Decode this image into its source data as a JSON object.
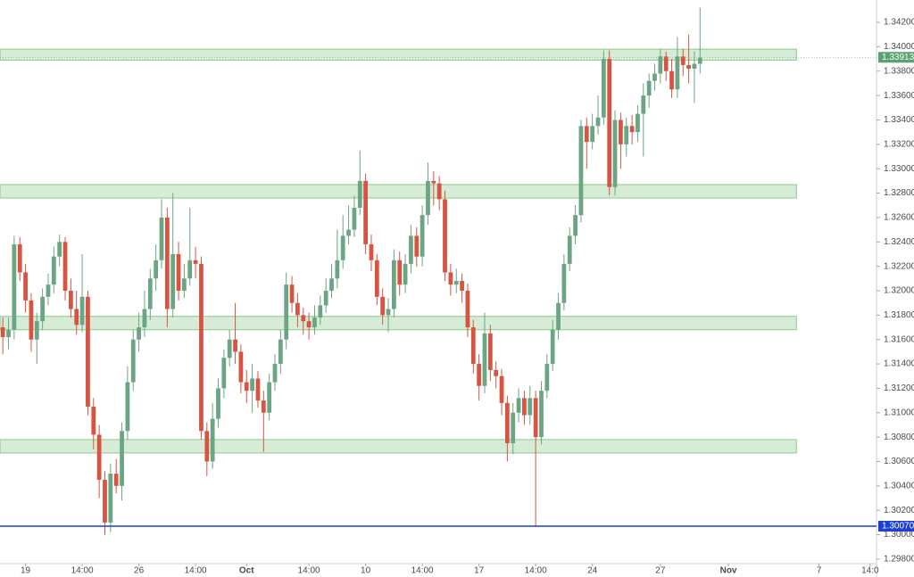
{
  "chart_data": {
    "type": "candlestick",
    "up_color": "#6ba583",
    "down_color": "#d75442",
    "ylim": [
      1.29763,
      1.34383
    ],
    "xlim": [
      -0.5,
      153.5
    ],
    "yticks": [
      {
        "value": 1.298,
        "label": "1.29800"
      },
      {
        "value": 1.3,
        "label": "1.30000"
      },
      {
        "value": 1.302,
        "label": "1.30200"
      },
      {
        "value": 1.304,
        "label": "1.30400"
      },
      {
        "value": 1.306,
        "label": "1.30600"
      },
      {
        "value": 1.308,
        "label": "1.30800"
      },
      {
        "value": 1.31,
        "label": "1.31000"
      },
      {
        "value": 1.312,
        "label": "1.31200"
      },
      {
        "value": 1.314,
        "label": "1.31400"
      },
      {
        "value": 1.316,
        "label": "1.31600"
      },
      {
        "value": 1.318,
        "label": "1.31800"
      },
      {
        "value": 1.32,
        "label": "1.32000"
      },
      {
        "value": 1.322,
        "label": "1.32200"
      },
      {
        "value": 1.324,
        "label": "1.32400"
      },
      {
        "value": 1.326,
        "label": "1.32600"
      },
      {
        "value": 1.328,
        "label": "1.32800"
      },
      {
        "value": 1.33,
        "label": "1.33000"
      },
      {
        "value": 1.332,
        "label": "1.33200"
      },
      {
        "value": 1.334,
        "label": "1.33400"
      },
      {
        "value": 1.336,
        "label": "1.33600"
      },
      {
        "value": 1.338,
        "label": "1.33800"
      },
      {
        "value": 1.34,
        "label": "1.34000"
      },
      {
        "value": 1.342,
        "label": "1.34200"
      }
    ],
    "xticks": [
      {
        "value": 4,
        "label": "19"
      },
      {
        "value": 14,
        "label": "14:00"
      },
      {
        "value": 24,
        "label": "26"
      },
      {
        "value": 34,
        "label": "14:00"
      },
      {
        "value": 43,
        "label": "Oct"
      },
      {
        "value": 54,
        "label": "14:00"
      },
      {
        "value": 64,
        "label": "10"
      },
      {
        "value": 74,
        "label": "14:00"
      },
      {
        "value": 84,
        "label": "17"
      },
      {
        "value": 94,
        "label": "14:00"
      },
      {
        "value": 104,
        "label": "24"
      },
      {
        "value": 116,
        "label": "27"
      },
      {
        "value": 128,
        "label": "Nov"
      },
      {
        "value": 144,
        "label": "7"
      },
      {
        "value": 153,
        "label": "14:0"
      }
    ],
    "zones": [
      {
        "low": 1.3389,
        "high": 1.3398,
        "color": "#8cc98a"
      },
      {
        "low": 1.3276,
        "high": 1.3287,
        "color": "#8cc98a"
      },
      {
        "low": 1.3168,
        "high": 1.3179,
        "color": "#8cc98a"
      },
      {
        "low": 1.3067,
        "high": 1.3078,
        "color": "#8cc98a"
      }
    ],
    "price_line": {
      "value": 1.3007,
      "label": "1.30070",
      "color": "#1f3fd1"
    },
    "last_price": {
      "value": 1.33913,
      "label": "1.33913",
      "color": "#5aa36e"
    },
    "open": [
      1.317,
      1.3162,
      1.3168,
      1.3238,
      1.3215,
      1.3192,
      1.316,
      1.3175,
      1.3195,
      1.3205,
      1.3228,
      1.324,
      1.32,
      1.3185,
      1.3172,
      1.3195,
      1.3105,
      1.3082,
      1.3045,
      1.301,
      1.305,
      1.304,
      1.3085,
      1.3125,
      1.316,
      1.317,
      1.3185,
      1.321,
      1.3225,
      1.326,
      1.3185,
      1.323,
      1.32,
      1.321,
      1.3225,
      1.3222,
      1.3085,
      1.306,
      1.3095,
      1.312,
      1.3145,
      1.316,
      1.315,
      1.3125,
      1.3118,
      1.3128,
      1.311,
      1.31,
      1.3125,
      1.314,
      1.316,
      1.3205,
      1.319,
      1.318,
      1.3175,
      1.317,
      1.3178,
      1.3188,
      1.32,
      1.321,
      1.3225,
      1.3245,
      1.325,
      1.3268,
      1.329,
      1.3238,
      1.3225,
      1.3195,
      1.318,
      1.3185,
      1.3225,
      1.3205,
      1.3222,
      1.3245,
      1.3228,
      1.3262,
      1.329,
      1.3288,
      1.3275,
      1.3215,
      1.3205,
      1.3208,
      1.32,
      1.317,
      1.314,
      1.3122,
      1.3165,
      1.3135,
      1.313,
      1.3108,
      1.3075,
      1.31,
      1.3112,
      1.3098,
      1.3112,
      1.308,
      1.3118,
      1.314,
      1.3168,
      1.319,
      1.3222,
      1.3245,
      1.3262,
      1.3335,
      1.3322,
      1.3335,
      1.3342,
      1.339,
      1.3285,
      1.334,
      1.332,
      1.3335,
      1.333,
      1.3345,
      1.336,
      1.3372,
      1.3378,
      1.3392,
      1.338,
      1.3365,
      1.3392,
      1.3385,
      1.3382,
      1.3386
    ],
    "close": [
      1.3162,
      1.3168,
      1.3238,
      1.3215,
      1.3192,
      1.316,
      1.3175,
      1.3195,
      1.3205,
      1.3228,
      1.324,
      1.32,
      1.3185,
      1.3172,
      1.3195,
      1.3105,
      1.3082,
      1.3045,
      1.301,
      1.305,
      1.304,
      1.3085,
      1.3125,
      1.316,
      1.317,
      1.3185,
      1.321,
      1.3225,
      1.326,
      1.3185,
      1.323,
      1.32,
      1.321,
      1.3225,
      1.3222,
      1.3085,
      1.306,
      1.3095,
      1.312,
      1.3145,
      1.316,
      1.315,
      1.3125,
      1.3118,
      1.3128,
      1.311,
      1.31,
      1.3125,
      1.314,
      1.316,
      1.3205,
      1.319,
      1.318,
      1.3175,
      1.317,
      1.3178,
      1.3188,
      1.32,
      1.321,
      1.3225,
      1.3245,
      1.325,
      1.3268,
      1.329,
      1.3238,
      1.3225,
      1.3195,
      1.318,
      1.3185,
      1.3225,
      1.3205,
      1.3222,
      1.3245,
      1.3228,
      1.3262,
      1.329,
      1.3288,
      1.3275,
      1.3215,
      1.3205,
      1.3208,
      1.32,
      1.317,
      1.314,
      1.3122,
      1.3165,
      1.3135,
      1.313,
      1.3108,
      1.3075,
      1.31,
      1.3112,
      1.3098,
      1.3112,
      1.308,
      1.3118,
      1.314,
      1.3168,
      1.319,
      1.3222,
      1.3245,
      1.3262,
      1.3335,
      1.3322,
      1.3335,
      1.3342,
      1.339,
      1.3285,
      1.334,
      1.332,
      1.3335,
      1.333,
      1.3345,
      1.336,
      1.3372,
      1.3378,
      1.3392,
      1.338,
      1.3365,
      1.3392,
      1.3385,
      1.3382,
      1.3386,
      1.3391
    ],
    "high": [
      1.3178,
      1.3178,
      1.3245,
      1.3244,
      1.3222,
      1.3198,
      1.3182,
      1.3202,
      1.3214,
      1.3236,
      1.3246,
      1.3244,
      1.321,
      1.32,
      1.323,
      1.32,
      1.3112,
      1.309,
      1.3052,
      1.3058,
      1.3062,
      1.3092,
      1.3138,
      1.3168,
      1.3182,
      1.32,
      1.3218,
      1.3238,
      1.3275,
      1.3268,
      1.328,
      1.324,
      1.3222,
      1.3268,
      1.3236,
      1.3228,
      1.3092,
      1.3108,
      1.3128,
      1.3152,
      1.3168,
      1.319,
      1.3156,
      1.3135,
      1.314,
      1.3134,
      1.3118,
      1.3132,
      1.3148,
      1.3168,
      1.3215,
      1.3212,
      1.3198,
      1.3186,
      1.3182,
      1.3188,
      1.3196,
      1.321,
      1.3222,
      1.325,
      1.3262,
      1.327,
      1.3278,
      1.3315,
      1.3296,
      1.3246,
      1.323,
      1.3202,
      1.3194,
      1.3234,
      1.3232,
      1.323,
      1.3254,
      1.3252,
      1.327,
      1.3305,
      1.3298,
      1.3294,
      1.3282,
      1.3222,
      1.3218,
      1.3214,
      1.3206,
      1.3176,
      1.3148,
      1.3182,
      1.3172,
      1.3142,
      1.3136,
      1.3114,
      1.3108,
      1.312,
      1.3118,
      1.3122,
      1.3118,
      1.3126,
      1.3148,
      1.3176,
      1.3198,
      1.323,
      1.3252,
      1.327,
      1.334,
      1.3342,
      1.3345,
      1.336,
      1.3397,
      1.3397,
      1.3348,
      1.3346,
      1.3342,
      1.3344,
      1.3352,
      1.337,
      1.3378,
      1.3386,
      1.3398,
      1.3396,
      1.339,
      1.3408,
      1.3398,
      1.341,
      1.3396,
      1.3432
    ],
    "low": [
      1.3148,
      1.3152,
      1.316,
      1.3208,
      1.3182,
      1.315,
      1.314,
      1.3168,
      1.3188,
      1.3198,
      1.322,
      1.3192,
      1.3178,
      1.3164,
      1.3166,
      1.3098,
      1.307,
      1.303,
      1.3,
      1.3002,
      1.3034,
      1.3028,
      1.3078,
      1.3118,
      1.315,
      1.3162,
      1.3176,
      1.32,
      1.3218,
      1.317,
      1.3178,
      1.3192,
      1.3194,
      1.3204,
      1.321,
      1.3078,
      1.3048,
      1.3054,
      1.3088,
      1.3112,
      1.3138,
      1.314,
      1.3116,
      1.3108,
      1.31,
      1.3104,
      1.3068,
      1.3094,
      1.3118,
      1.3132,
      1.3152,
      1.3182,
      1.317,
      1.3164,
      1.316,
      1.3164,
      1.3172,
      1.3182,
      1.3194,
      1.3202,
      1.3218,
      1.3238,
      1.3244,
      1.3262,
      1.323,
      1.3216,
      1.3188,
      1.3172,
      1.3166,
      1.3178,
      1.3196,
      1.3198,
      1.3214,
      1.322,
      1.322,
      1.3254,
      1.327,
      1.3266,
      1.3208,
      1.3196,
      1.3198,
      1.319,
      1.3162,
      1.3132,
      1.311,
      1.3116,
      1.3126,
      1.312,
      1.3098,
      1.306,
      1.3066,
      1.3092,
      1.309,
      1.309,
      1.3007,
      1.3074,
      1.3112,
      1.3134,
      1.316,
      1.3184,
      1.3216,
      1.3238,
      1.3256,
      1.33,
      1.3316,
      1.3328,
      1.3336,
      1.3278,
      1.3278,
      1.33,
      1.331,
      1.332,
      1.3322,
      1.331,
      1.335,
      1.3364,
      1.337,
      1.3372,
      1.3358,
      1.3358,
      1.3376,
      1.337,
      1.3354,
      1.3378
    ]
  }
}
